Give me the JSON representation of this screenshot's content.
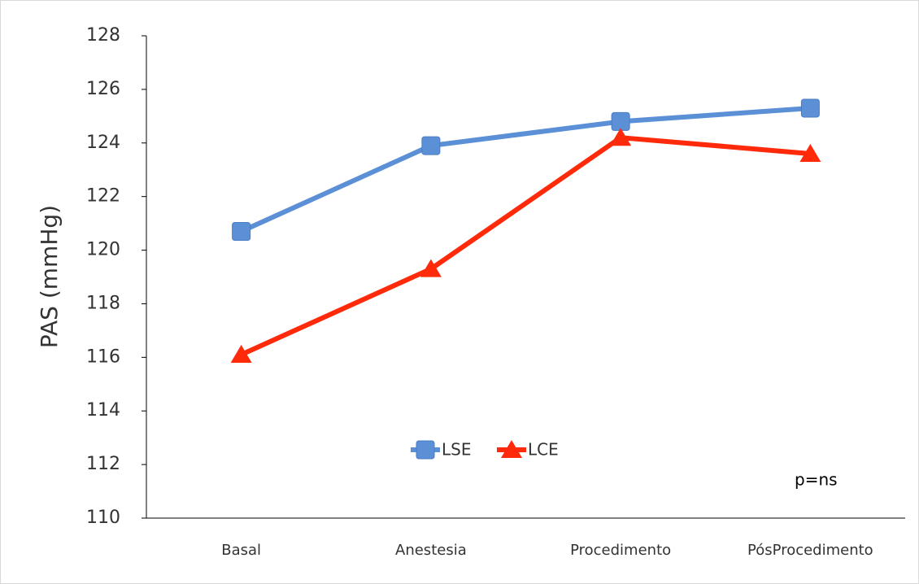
{
  "chart_data": {
    "type": "line",
    "ylabel": "PAS (mmHg)",
    "categories": [
      "Basal",
      "Anestesia",
      "Procedimento",
      "PósProcedimento"
    ],
    "series": [
      {
        "name": "LSE",
        "color": "#5b8fd6",
        "marker": "square",
        "values": [
          120.7,
          123.9,
          124.8,
          125.3
        ]
      },
      {
        "name": "LCE",
        "color": "#ff2a0a",
        "marker": "triangle",
        "values": [
          116.1,
          119.3,
          124.2,
          123.6
        ]
      }
    ],
    "ylim": [
      110,
      128
    ],
    "yticks": [
      110,
      112,
      114,
      116,
      118,
      120,
      122,
      124,
      126,
      128
    ],
    "grid": false,
    "legend": "lower center",
    "annotation": "p=ns"
  }
}
